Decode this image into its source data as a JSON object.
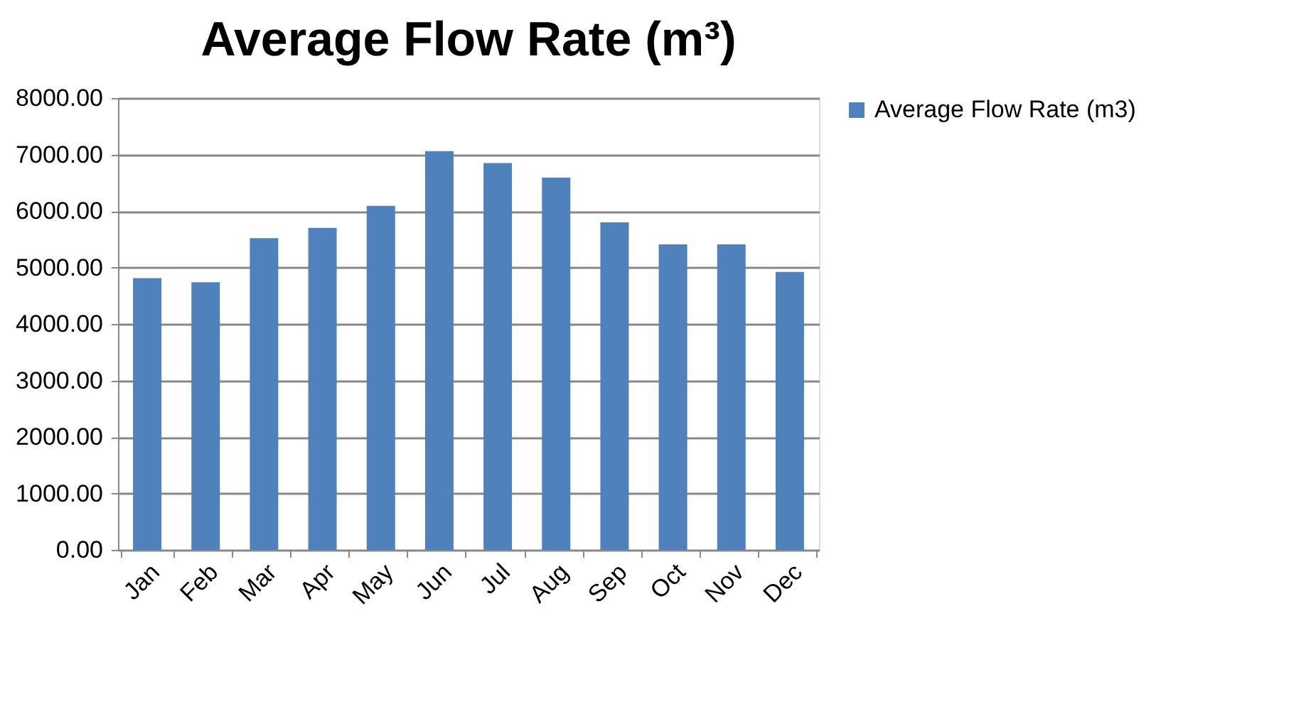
{
  "chart_data": {
    "type": "bar",
    "title": "Average Flow Rate (m³)",
    "categories": [
      "Jan",
      "Feb",
      "Mar",
      "Apr",
      "May",
      "Jun",
      "Jul",
      "Aug",
      "Sep",
      "Oct",
      "Nov",
      "Dec"
    ],
    "series": [
      {
        "name": "Average Flow Rate (m3)",
        "color": "#4f81bd",
        "values": [
          4810,
          4740,
          5520,
          5700,
          6090,
          7060,
          6850,
          6590,
          5800,
          5410,
          5410,
          4920
        ]
      }
    ],
    "ylim": [
      0,
      8000
    ],
    "yticks": [
      {
        "value": 0,
        "label": "0.00"
      },
      {
        "value": 1000,
        "label": "1000.00"
      },
      {
        "value": 2000,
        "label": "2000.00"
      },
      {
        "value": 3000,
        "label": "3000.00"
      },
      {
        "value": 4000,
        "label": "4000.00"
      },
      {
        "value": 5000,
        "label": "5000.00"
      },
      {
        "value": 6000,
        "label": "6000.00"
      },
      {
        "value": 7000,
        "label": "7000.00"
      },
      {
        "value": 8000,
        "label": "8000.00"
      }
    ],
    "grid": "y",
    "legend": "right"
  }
}
